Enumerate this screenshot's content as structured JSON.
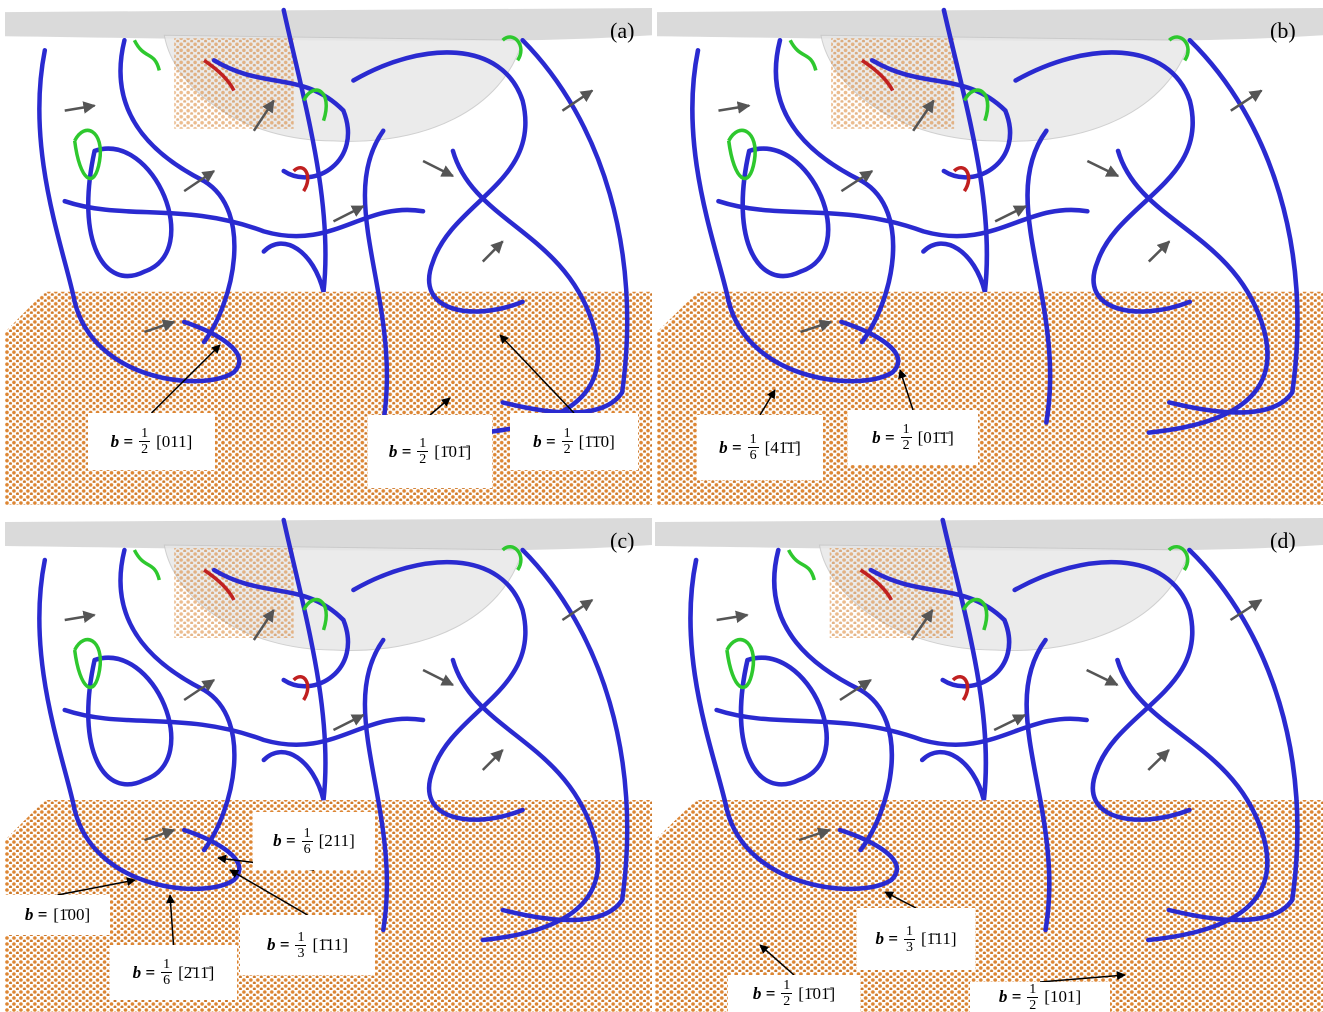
{
  "panels": [
    {
      "label": "(a)",
      "annotations": [
        {
          "lhs": "b =",
          "numerator": "1",
          "denominator": "2",
          "vector": "[011]"
        },
        {
          "lhs": "b =",
          "numerator": "1",
          "denominator": "2",
          "vector": "[1̄01̄]"
        },
        {
          "lhs": "b =",
          "numerator": "1",
          "denominator": "2",
          "vector": "[1̄1̄0]"
        }
      ]
    },
    {
      "label": "(b)",
      "annotations": [
        {
          "lhs": "b =",
          "numerator": "1",
          "denominator": "6",
          "vector": "[41̄1̄]"
        },
        {
          "lhs": "b =",
          "numerator": "1",
          "denominator": "2",
          "vector": "[01̄1̄]"
        }
      ]
    },
    {
      "label": "(c)",
      "annotations": [
        {
          "lhs": "b =",
          "numerator": "1",
          "denominator": "6",
          "vector": "[211]"
        },
        {
          "lhs": "b =",
          "vector": "[1̄00]"
        },
        {
          "lhs": "b =",
          "numerator": "1",
          "denominator": "3",
          "vector": "[1̄11]"
        },
        {
          "lhs": "b =",
          "numerator": "1",
          "denominator": "6",
          "vector": "[2̄11̄]"
        }
      ]
    },
    {
      "label": "(d)",
      "annotations": [
        {
          "lhs": "b =",
          "numerator": "1",
          "denominator": "3",
          "vector": "[1̄11]"
        },
        {
          "lhs": "b =",
          "numerator": "1",
          "denominator": "2",
          "vector": "[1̄01̄]"
        },
        {
          "lhs": "b =",
          "numerator": "1",
          "denominator": "2",
          "vector": "[101]"
        }
      ]
    }
  ]
}
